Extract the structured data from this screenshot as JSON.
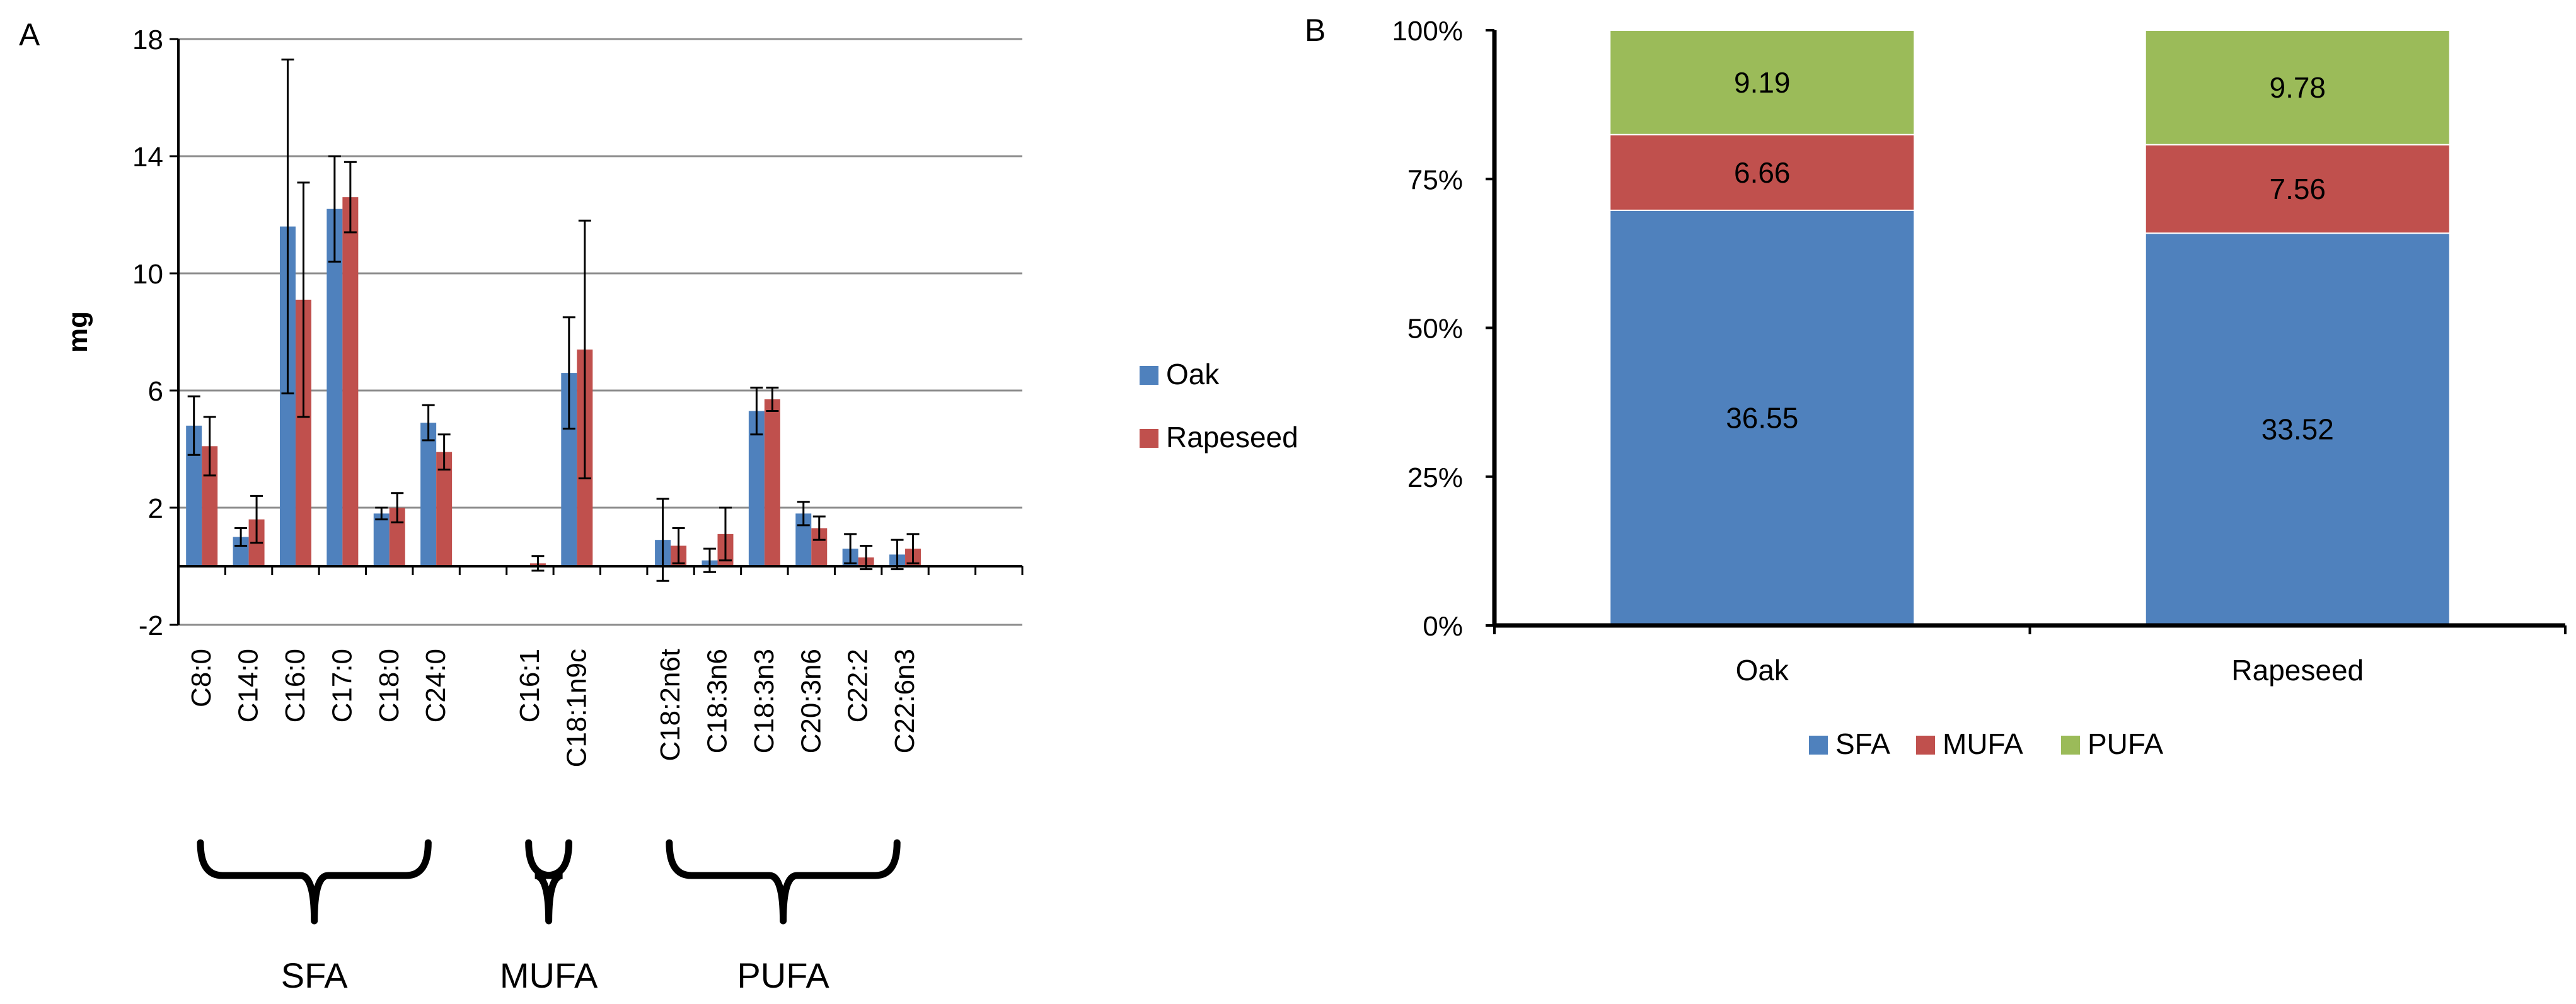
{
  "colors": {
    "oak": "#4F81BD",
    "rapeseed": "#C0504D",
    "sfa": "#4F81BD",
    "mufa": "#C0504D",
    "pufa": "#9BBB59",
    "grid": "#8C8C8C",
    "axis": "#000000",
    "text": "#000000"
  },
  "chart_data": [
    {
      "panel_label": "A",
      "type": "bar",
      "ylabel": "mg",
      "ylim": [
        -2,
        18
      ],
      "yticks": [
        -2,
        2,
        6,
        10,
        14,
        18
      ],
      "tick_labels": [
        "-2",
        "2",
        "6",
        "10",
        "14",
        "18"
      ],
      "grid": true,
      "legend_position": "right",
      "category_slots": 18,
      "categories": [
        {
          "label": "C8:0",
          "slot": 0
        },
        {
          "label": "C14:0",
          "slot": 1
        },
        {
          "label": "C16:0",
          "slot": 2
        },
        {
          "label": "C17:0",
          "slot": 3
        },
        {
          "label": "C18:0",
          "slot": 4
        },
        {
          "label": "C24:0",
          "slot": 5
        },
        {
          "label": "C16:1",
          "slot": 7
        },
        {
          "label": "C18:1n9c",
          "slot": 8
        },
        {
          "label": "C18:2n6t",
          "slot": 10
        },
        {
          "label": "C18:3n6",
          "slot": 11
        },
        {
          "label": "C18:3n3",
          "slot": 12
        },
        {
          "label": "C20:3n6",
          "slot": 13
        },
        {
          "label": "C22:2",
          "slot": 14
        },
        {
          "label": "C22:6n3",
          "slot": 15
        }
      ],
      "series": [
        {
          "name": "Oak",
          "color_key": "oak",
          "values": [
            4.8,
            1.0,
            11.6,
            12.2,
            1.8,
            4.9,
            0.0,
            6.6,
            0.9,
            0.2,
            5.3,
            1.8,
            0.6,
            0.4
          ],
          "errors": [
            1.0,
            0.3,
            5.7,
            1.8,
            0.2,
            0.6,
            0.0,
            1.9,
            1.4,
            0.4,
            0.8,
            0.4,
            0.5,
            0.5
          ]
        },
        {
          "name": "Rapeseed",
          "color_key": "rapeseed",
          "values": [
            4.1,
            1.6,
            9.1,
            12.6,
            2.0,
            3.9,
            0.1,
            7.4,
            0.7,
            1.1,
            5.7,
            1.3,
            0.3,
            0.6
          ],
          "errors": [
            1.0,
            0.8,
            4.0,
            1.2,
            0.5,
            0.6,
            0.25,
            4.4,
            0.6,
            0.9,
            0.4,
            0.4,
            0.4,
            0.5
          ]
        }
      ],
      "groups": [
        {
          "label": "SFA",
          "first_slot": 0,
          "last_slot": 5
        },
        {
          "label": "MUFA",
          "first_slot": 7,
          "last_slot": 8
        },
        {
          "label": "PUFA",
          "first_slot": 10,
          "last_slot": 15
        }
      ]
    },
    {
      "panel_label": "B",
      "type": "bar",
      "stacked": "percent",
      "ylim": [
        0,
        100
      ],
      "yticks": [
        0,
        25,
        50,
        75,
        100
      ],
      "tick_labels": [
        "0%",
        "25%",
        "50%",
        "75%",
        "100%"
      ],
      "grid": false,
      "legend_position": "bottom",
      "categories": [
        "Oak",
        "Rapeseed"
      ],
      "series": [
        {
          "name": "SFA",
          "color_key": "sfa",
          "values": [
            36.55,
            33.52
          ],
          "labels": [
            "36.55",
            "33.52"
          ]
        },
        {
          "name": "MUFA",
          "color_key": "mufa",
          "values": [
            6.66,
            7.56
          ],
          "labels": [
            "6.66",
            "7.56"
          ]
        },
        {
          "name": "PUFA",
          "color_key": "pufa",
          "values": [
            9.19,
            9.78
          ],
          "labels": [
            "9.19",
            "9.78"
          ]
        }
      ]
    }
  ]
}
